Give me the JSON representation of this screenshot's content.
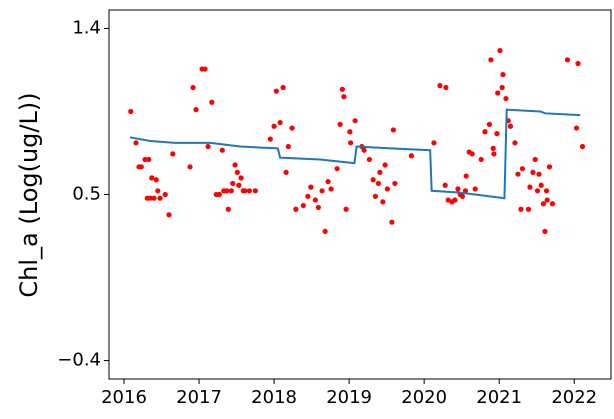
{
  "chart_data": {
    "type": "scatter",
    "ylabel": "Chl_a (Log(ug/L))",
    "xlim": [
      2015.8,
      2022.49
    ],
    "ylim": [
      -0.5,
      1.5
    ],
    "xticks": [
      2016,
      2017,
      2018,
      2019,
      2020,
      2021,
      2022
    ],
    "yticks": [
      {
        "value": -0.4,
        "label": "−0.4"
      },
      0.5,
      1.4
    ],
    "series": [
      {
        "type": "scatter",
        "color": "#ff0000",
        "x": [
          2016.09,
          2016.16,
          2016.2,
          2016.23,
          2016.28,
          2016.33,
          2016.31,
          2016.35,
          2016.37,
          2016.4,
          2016.43,
          2016.45,
          2016.48,
          2016.55,
          2016.6,
          2016.65,
          2016.88,
          2016.92,
          2016.96,
          2017.04,
          2017.08,
          2017.12,
          2017.17,
          2017.23,
          2017.27,
          2017.31,
          2017.33,
          2017.37,
          2017.39,
          2017.43,
          2017.45,
          2017.48,
          2017.51,
          2017.53,
          2017.56,
          2017.59,
          2017.61,
          2017.67,
          2017.75,
          2017.95,
          2018.0,
          2018.03,
          2018.08,
          2018.12,
          2018.16,
          2018.19,
          2018.24,
          2018.29,
          2018.39,
          2018.45,
          2018.49,
          2018.55,
          2018.59,
          2018.64,
          2018.68,
          2018.72,
          2018.76,
          2018.84,
          2018.88,
          2018.91,
          2018.93,
          2018.96,
          2019.01,
          2019.02,
          2019.08,
          2019.17,
          2019.2,
          2019.27,
          2019.32,
          2019.35,
          2019.39,
          2019.41,
          2019.45,
          2019.48,
          2019.51,
          2019.57,
          2019.59,
          2019.61,
          2019.83,
          2020.13,
          2020.21,
          2020.29,
          2020.28,
          2020.32,
          2020.37,
          2020.41,
          2020.45,
          2020.48,
          2020.51,
          2020.55,
          2020.56,
          2020.6,
          2020.64,
          2020.68,
          2020.76,
          2020.81,
          2020.87,
          2020.92,
          2020.93,
          2020.97,
          2020.89,
          2020.98,
          2021.01,
          2021.04,
          2021.05,
          2021.09,
          2021.12,
          2021.15,
          2021.21,
          2021.25,
          2021.31,
          2021.29,
          2021.39,
          2021.41,
          2021.45,
          2021.48,
          2021.51,
          2021.53,
          2021.56,
          2021.59,
          2021.61,
          2021.63,
          2021.64,
          2021.67,
          2021.71,
          2021.91,
          2022.03,
          2022.05,
          2022.11
        ],
        "values": [
          0.95,
          0.78,
          0.65,
          0.65,
          0.69,
          0.69,
          0.48,
          0.48,
          0.59,
          0.48,
          0.58,
          0.52,
          0.48,
          0.5,
          0.39,
          0.72,
          0.65,
          1.08,
          0.96,
          1.18,
          1.18,
          0.76,
          1.0,
          0.5,
          0.5,
          0.74,
          0.52,
          0.52,
          0.42,
          0.52,
          0.56,
          0.66,
          0.62,
          0.55,
          0.59,
          0.52,
          0.52,
          0.52,
          0.52,
          0.8,
          0.87,
          1.06,
          0.89,
          1.08,
          0.62,
          0.76,
          0.86,
          0.42,
          0.44,
          0.49,
          0.54,
          0.47,
          0.43,
          0.52,
          0.3,
          0.57,
          0.53,
          0.64,
          0.88,
          1.07,
          1.03,
          0.42,
          0.84,
          0.78,
          0.9,
          0.76,
          0.74,
          0.69,
          0.58,
          0.49,
          0.56,
          0.62,
          0.46,
          0.66,
          0.53,
          0.35,
          0.85,
          0.56,
          0.71,
          0.78,
          1.09,
          1.08,
          0.55,
          0.47,
          0.46,
          0.47,
          0.53,
          0.5,
          0.49,
          0.52,
          0.6,
          0.73,
          0.72,
          0.53,
          0.69,
          0.84,
          0.88,
          0.75,
          0.72,
          0.83,
          1.23,
          1.05,
          1.28,
          1.08,
          1.15,
          1.02,
          0.9,
          0.87,
          0.78,
          0.61,
          0.64,
          0.42,
          0.42,
          0.54,
          0.62,
          0.69,
          0.52,
          0.61,
          0.55,
          0.45,
          0.3,
          0.52,
          0.47,
          0.65,
          0.45,
          1.23,
          0.86,
          1.21,
          0.76
        ]
      },
      {
        "type": "line",
        "color": "#1f77b4",
        "x": [
          2016.08,
          2016.35,
          2016.68,
          2017.01,
          2017.15,
          2017.55,
          2018.05,
          2018.08,
          2018.61,
          2019.07,
          2019.1,
          2019.55,
          2020.08,
          2020.1,
          2020.48,
          2021.07,
          2021.1,
          2021.55,
          2021.61,
          2022.08
        ],
        "values": [
          0.81,
          0.79,
          0.78,
          0.78,
          0.78,
          0.76,
          0.75,
          0.7,
          0.69,
          0.67,
          0.76,
          0.75,
          0.74,
          0.52,
          0.51,
          0.48,
          0.96,
          0.95,
          0.94,
          0.93
        ]
      }
    ]
  }
}
